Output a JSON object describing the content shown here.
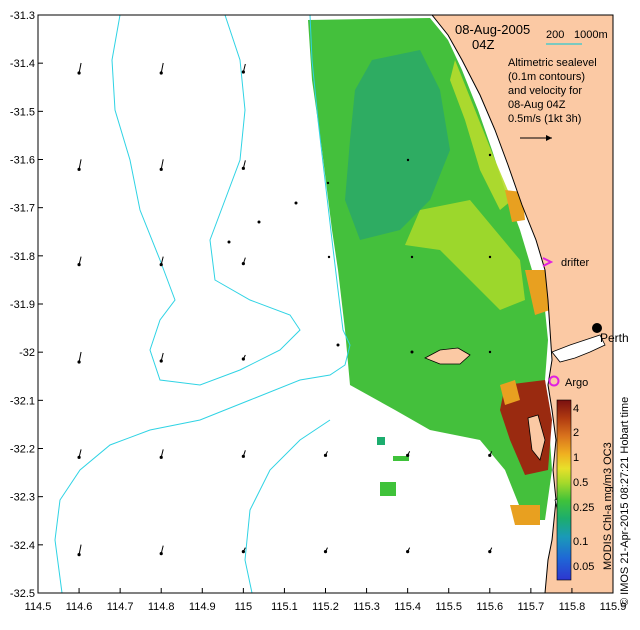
{
  "header": {
    "date": "08-Aug-2005",
    "time": "04Z",
    "scale_label_left": "200",
    "scale_label_right": "1000m",
    "scale_line_color": "#4fc9c9"
  },
  "annotation": {
    "lines": [
      "Altimetric sealevel",
      "(0.1m contours)",
      "and velocity for",
      "08-Aug 04Z",
      "0.5m/s (1kt 3h)"
    ]
  },
  "places": {
    "perth": "Perth",
    "hobart": "Hobart time",
    "drifter": "drifter",
    "argo": "Argo"
  },
  "colorbar": {
    "title": "MODIS Chl-a mg/m3 OC3",
    "ticks": [
      "4",
      "2",
      "1",
      "0.5",
      "0.25",
      "0.1",
      "0.05"
    ],
    "colors": [
      "#7a1010",
      "#b03a10",
      "#d9731d",
      "#f0b020",
      "#e8e02a",
      "#a6d92a",
      "#3fc23a",
      "#1cad6e",
      "#1a9ab8",
      "#1f67d6",
      "#2d35d0"
    ]
  },
  "credit": "© IMOS 21-Apr-2015 08:27:21 Hobart time",
  "colors": {
    "land": "#fbc9a4",
    "ocean": "#ffffff",
    "isobath": "#2fd3e4",
    "drifter_marker": "#e020e0",
    "argo_marker": "#e020e0"
  },
  "axes": {
    "x_ticks": [
      "114.5",
      "114.6",
      "114.7",
      "114.8",
      "114.9",
      "115",
      "115.1",
      "115.2",
      "115.3",
      "115.4",
      "115.5",
      "115.6",
      "115.7",
      "115.8",
      "115.9"
    ],
    "y_ticks": [
      "-31.3",
      "-31.4",
      "-31.5",
      "-31.6",
      "-31.7",
      "-31.8",
      "-31.9",
      "-32",
      "-32.1",
      "-32.2",
      "-32.3",
      "-32.4",
      "-32.5"
    ],
    "xlim": [
      114.5,
      115.9
    ],
    "ylim": [
      -32.5,
      -31.3
    ]
  },
  "vectors": [
    [
      114.6,
      -31.41,
      0.1
    ],
    [
      114.8,
      -31.41,
      0.1
    ],
    [
      115.0,
      -31.41,
      0.08
    ],
    [
      114.6,
      -31.61,
      0.1
    ],
    [
      114.8,
      -31.61,
      0.1
    ],
    [
      115.0,
      -31.61,
      0.08
    ],
    [
      114.6,
      -31.81,
      0.08
    ],
    [
      114.8,
      -31.81,
      0.08
    ],
    [
      115.0,
      -31.81,
      0.06
    ],
    [
      114.6,
      -32.01,
      0.1
    ],
    [
      114.8,
      -32.01,
      0.08
    ],
    [
      115.0,
      -32.01,
      0.04
    ],
    [
      114.6,
      -32.21,
      0.08
    ],
    [
      114.8,
      -32.21,
      0.08
    ],
    [
      115.0,
      -32.21,
      0.06
    ],
    [
      114.6,
      -32.41,
      0.1
    ],
    [
      114.8,
      -32.41,
      0.08
    ],
    [
      115.0,
      -32.41,
      0.04
    ],
    [
      115.2,
      -32.21,
      0.04
    ],
    [
      115.4,
      -32.21,
      0.04
    ],
    [
      115.6,
      -32.21,
      0.04
    ],
    [
      115.2,
      -32.41,
      0.04
    ],
    [
      115.4,
      -32.41,
      0.04
    ],
    [
      115.6,
      -32.41,
      0.04
    ]
  ]
}
